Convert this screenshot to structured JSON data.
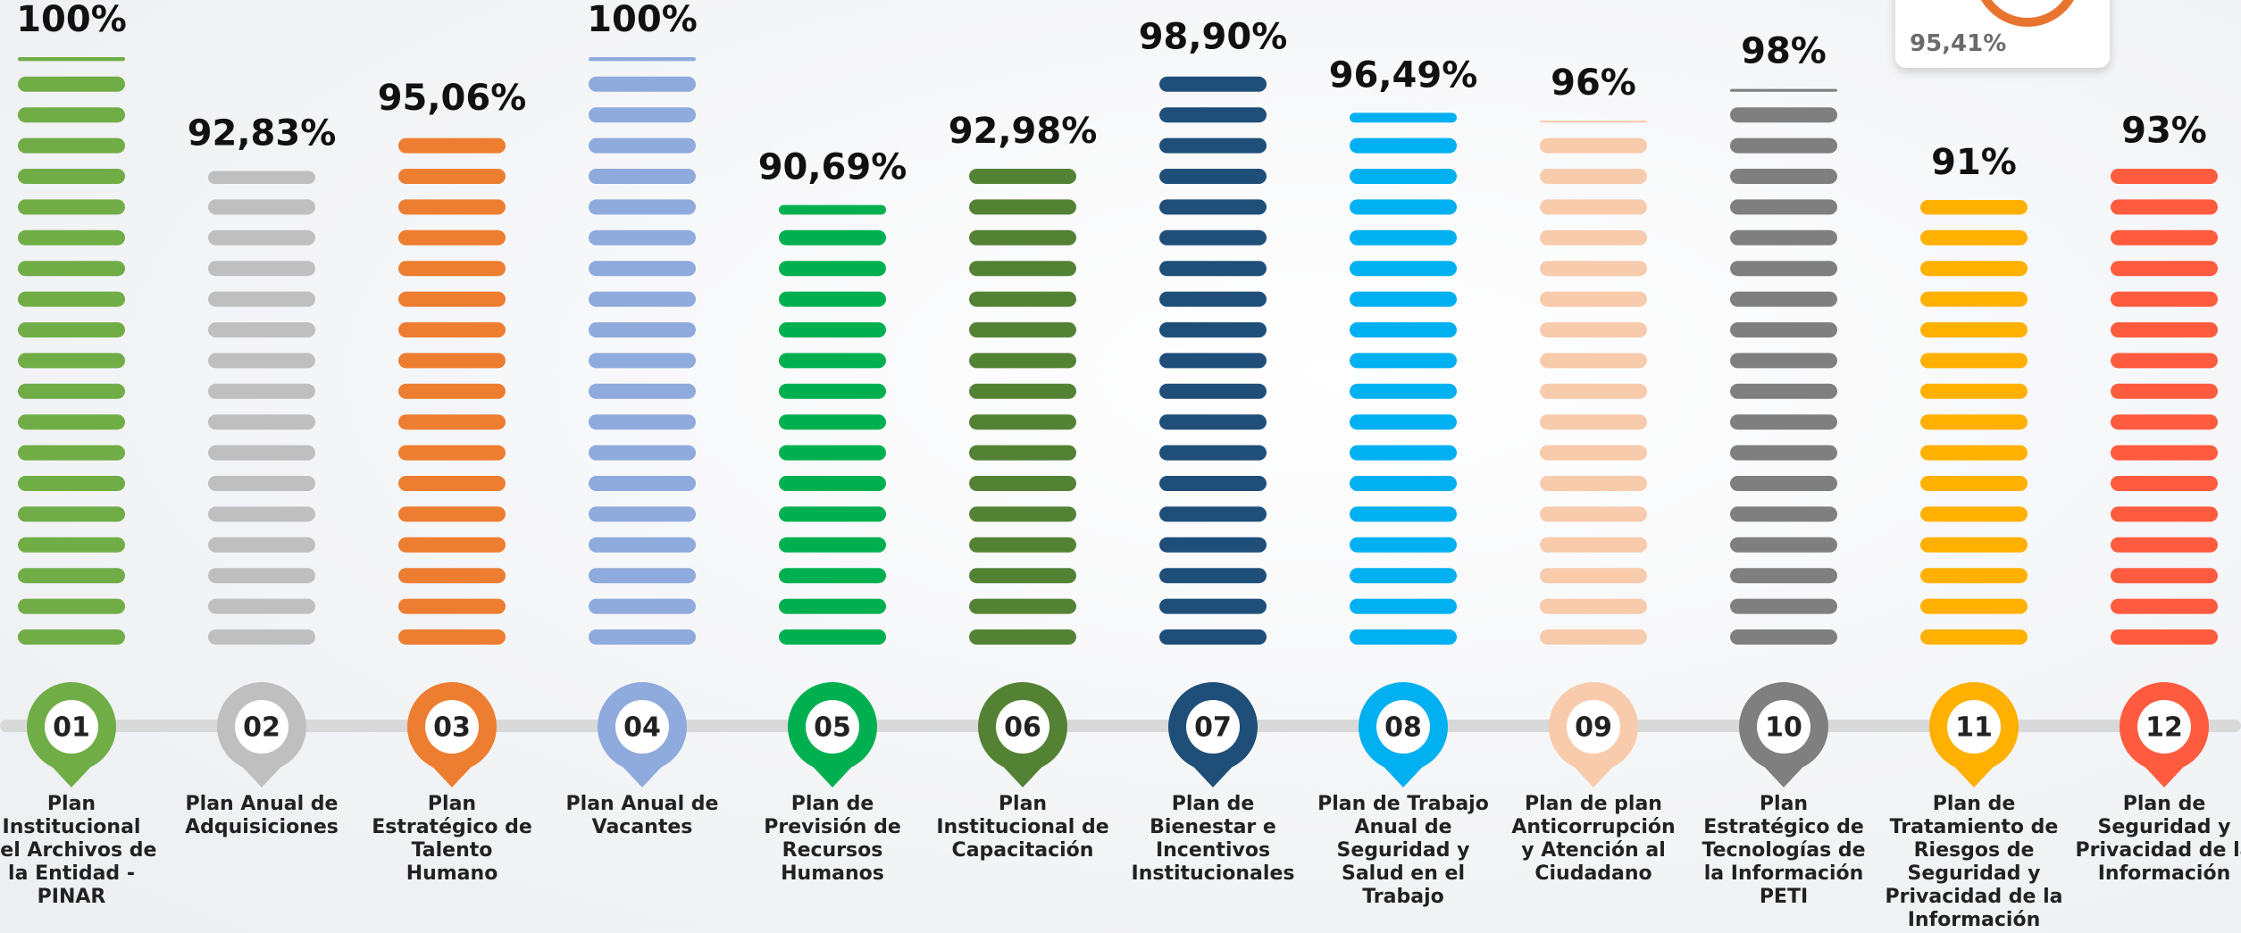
{
  "chart_data": {
    "type": "stripe-bar",
    "categories": [
      "Plan Institucional del Archivos de la Entidad - PINAR",
      "Plan Anual de Adquisiciones",
      "Plan Estratégico de Talento Humano",
      "Plan Anual de Vacantes",
      "Plan de Previsión de Recursos Humanos",
      "Plan Institucional de Capacitación",
      "Plan de Bienestar e Incentivos Institucionales",
      "Plan de Trabajo Anual de Seguridad y Salud en el Trabajo",
      "Plan de plan Anticorrupción y Atención al Ciudadano",
      "Plan Estratégico de Tecnologías de la Información PETI",
      "Plan de Tratamiento de Riesgos de Seguridad y Privacidad de la Información",
      "Plan de Seguridad y Privacidad de la Información"
    ],
    "numbers": [
      "01",
      "02",
      "03",
      "04",
      "05",
      "06",
      "07",
      "08",
      "09",
      "10",
      "11",
      "12"
    ],
    "values": [
      100,
      92.83,
      95.06,
      100,
      90.69,
      92.98,
      98.9,
      96.49,
      96,
      98,
      91,
      93
    ],
    "value_labels": [
      "100%",
      "92,83%",
      "95,06%",
      "100%",
      "90,69%",
      "92,98%",
      "98,90%",
      "96,49%",
      "96%",
      "98%",
      "91%",
      "93%"
    ],
    "colors": [
      "#70ad47",
      "#bfbfbf",
      "#ed7d31",
      "#8faadc",
      "#00b050",
      "#548235",
      "#1f4e79",
      "#00b0f0",
      "#f8cbad",
      "#7f7f7f",
      "#ffb000",
      "#ff5b3f"
    ],
    "ylim": [
      63,
      100
    ],
    "annotation": "95,41%"
  }
}
